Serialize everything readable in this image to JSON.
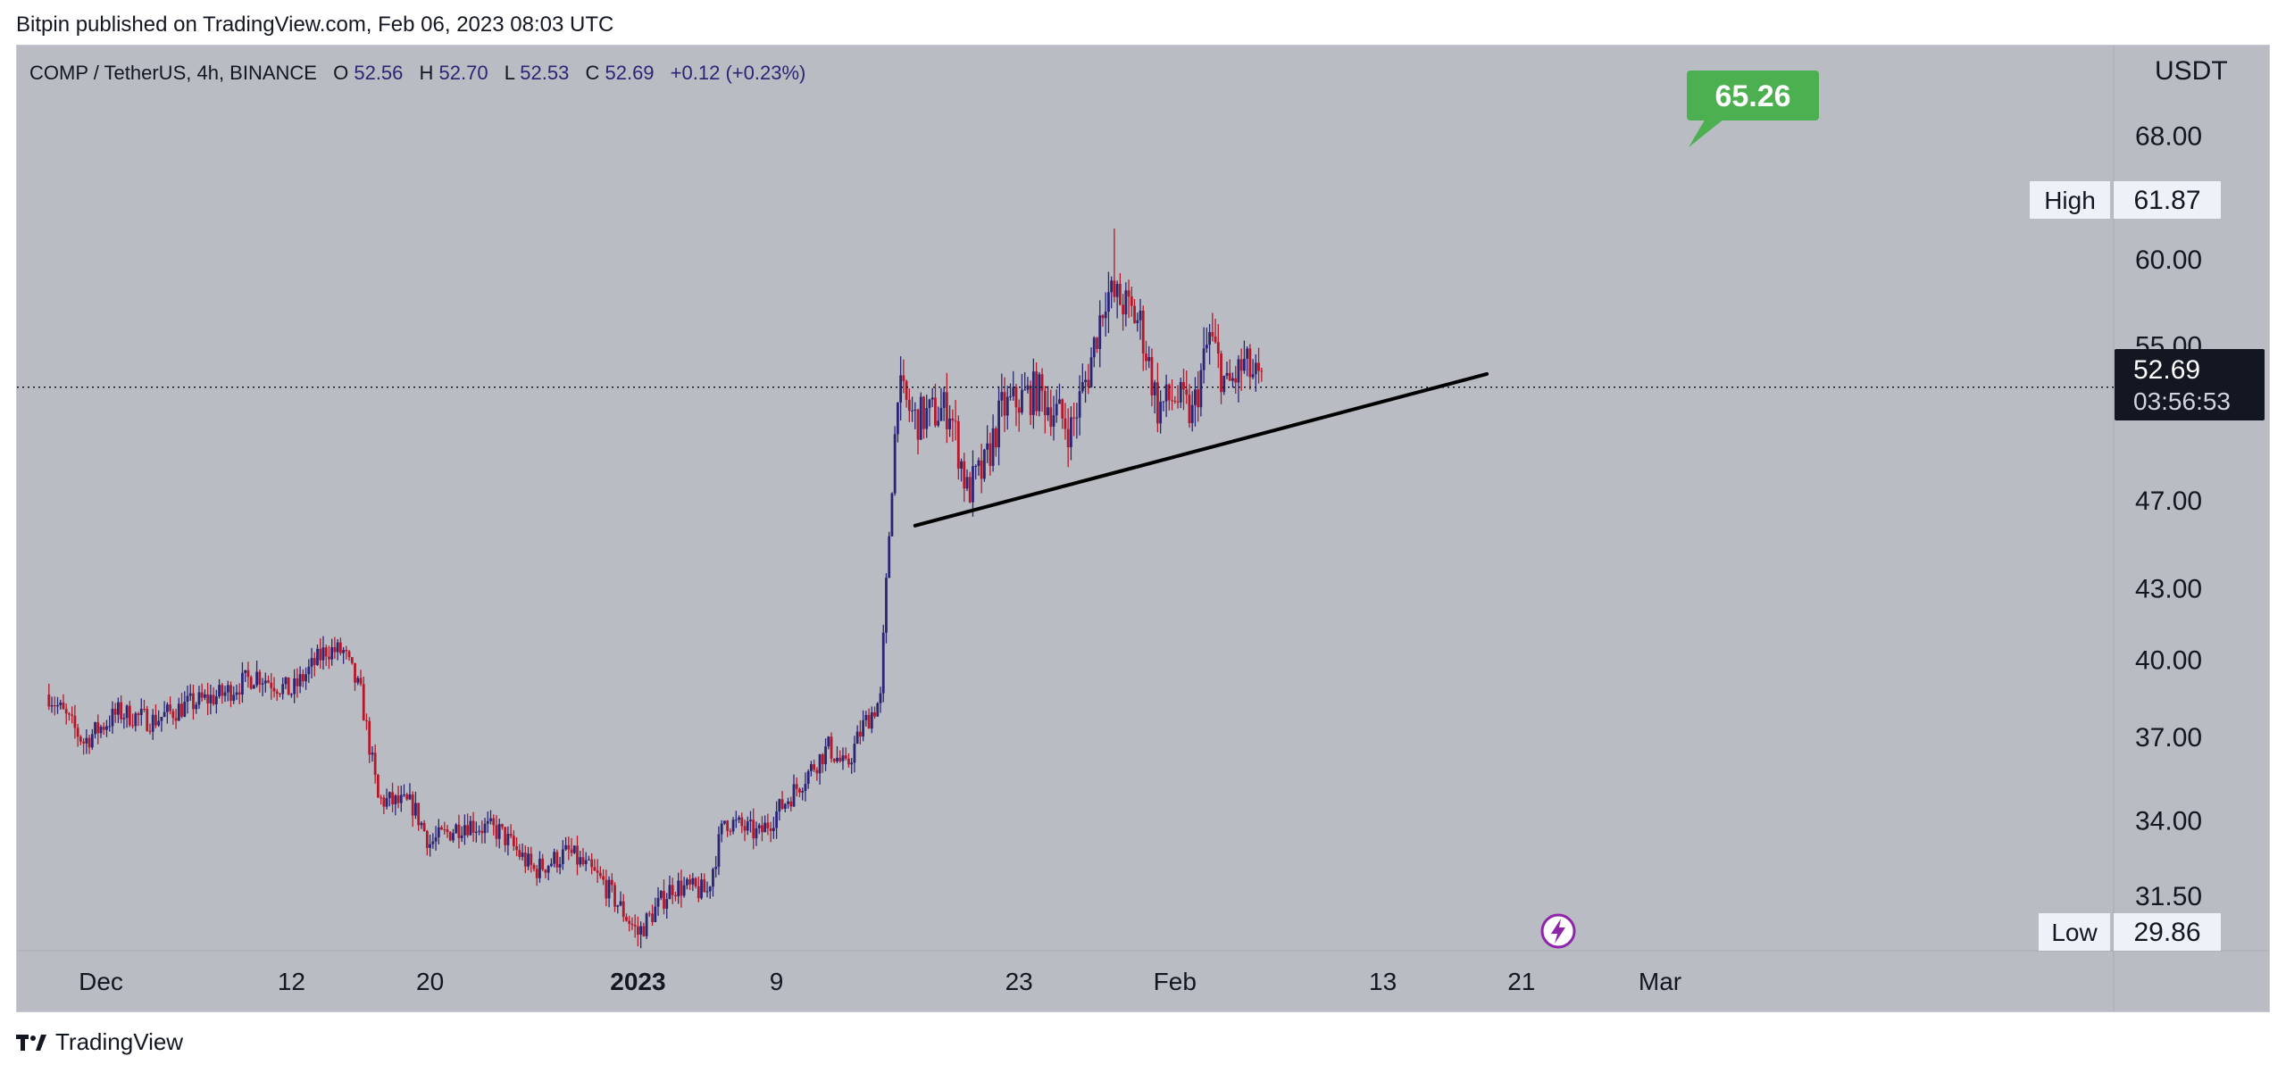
{
  "publisher_line": "Bitpin published on TradingView.com, Feb 06, 2023 08:03 UTC",
  "footer": {
    "logo_text": "TradingView"
  },
  "legend": {
    "symbol": "COMP / TetherUS, 4h, BINANCE",
    "open_label": "O",
    "open": "52.56",
    "high_label": "H",
    "high": "52.70",
    "low_label": "L",
    "low": "52.53",
    "close_label": "C",
    "close": "52.69",
    "change": "+0.12 (+0.23%)"
  },
  "price_axis": {
    "currency": "USDT",
    "ticks": [
      "68.00",
      "60.00",
      "55.00",
      "47.00",
      "43.00",
      "40.00",
      "37.00",
      "34.00",
      "31.50"
    ]
  },
  "badges": {
    "high_label": "High",
    "high_value": "61.87",
    "low_label": "Low",
    "low_value": "29.86",
    "last_price": "52.69",
    "countdown": "03:56:53",
    "callout": "65.26"
  },
  "colors": {
    "background": "#b9bcc2",
    "up_candle": "#2a2575",
    "down_candle": "#b5182b",
    "callout": "#4caf50",
    "trendline": "#000000"
  },
  "chart_data": {
    "type": "candlestick",
    "symbol": "COMP / TetherUS",
    "interval": "4h",
    "exchange": "BINANCE",
    "y_scale": "log",
    "ylim": [
      29.86,
      68.0
    ],
    "x_ticks": [
      "Dec",
      "12",
      "20",
      "2023",
      "9",
      "23",
      "Feb",
      "13",
      "21",
      "Mar"
    ],
    "x_range": [
      "2022-11-28",
      "2023-03-05"
    ],
    "close_path": [
      [
        "2022-11-28",
        38.6
      ],
      [
        "2022-11-30",
        36.8
      ],
      [
        "2022-12-02",
        37.9
      ],
      [
        "2022-12-04",
        37.6
      ],
      [
        "2022-12-06",
        38.2
      ],
      [
        "2022-12-08",
        38.6
      ],
      [
        "2022-12-10",
        39.4
      ],
      [
        "2022-12-12",
        38.7
      ],
      [
        "2022-12-14",
        40.4
      ],
      [
        "2022-12-15",
        40.3
      ],
      [
        "2022-12-16",
        38.6
      ],
      [
        "2022-12-17",
        34.7
      ],
      [
        "2022-12-19",
        34.5
      ],
      [
        "2022-12-20",
        33.2
      ],
      [
        "2022-12-22",
        33.9
      ],
      [
        "2022-12-24",
        33.6
      ],
      [
        "2022-12-26",
        32.3
      ],
      [
        "2022-12-28",
        32.9
      ],
      [
        "2022-12-30",
        31.9
      ],
      [
        "2023-01-01",
        30.3
      ],
      [
        "2023-01-03",
        31.8
      ],
      [
        "2023-01-05",
        31.6
      ],
      [
        "2023-01-06",
        34.0
      ],
      [
        "2023-01-08",
        33.5
      ],
      [
        "2023-01-10",
        35.0
      ],
      [
        "2023-01-12",
        36.6
      ],
      [
        "2023-01-13",
        35.8
      ],
      [
        "2023-01-14",
        37.4
      ],
      [
        "2023-01-15",
        38.4
      ],
      [
        "2023-01-16",
        52.5
      ],
      [
        "2023-01-17",
        51.0
      ],
      [
        "2023-01-19",
        51.6
      ],
      [
        "2023-01-20",
        47.4
      ],
      [
        "2023-01-21",
        48.5
      ],
      [
        "2023-01-22",
        51.5
      ],
      [
        "2023-01-24",
        52.5
      ],
      [
        "2023-01-26",
        50.5
      ],
      [
        "2023-01-27",
        53.5
      ],
      [
        "2023-01-28",
        58.0
      ],
      [
        "2023-01-29",
        57.4
      ],
      [
        "2023-01-30",
        56.2
      ],
      [
        "2023-01-31",
        51.6
      ],
      [
        "2023-02-01",
        52.2
      ],
      [
        "2023-02-02",
        51.2
      ],
      [
        "2023-02-03",
        55.5
      ],
      [
        "2023-02-04",
        52.6
      ],
      [
        "2023-02-05",
        53.9
      ],
      [
        "2023-02-06",
        52.69
      ]
    ],
    "wicks": {
      "high": [
        "2023-01-28",
        61.87
      ],
      "low": [
        "2023-01-01",
        29.86
      ]
    },
    "trendline": [
      [
        "2023-01-17",
        45.8
      ],
      [
        "2023-02-19",
        53.4
      ]
    ],
    "current_price": 52.69
  }
}
